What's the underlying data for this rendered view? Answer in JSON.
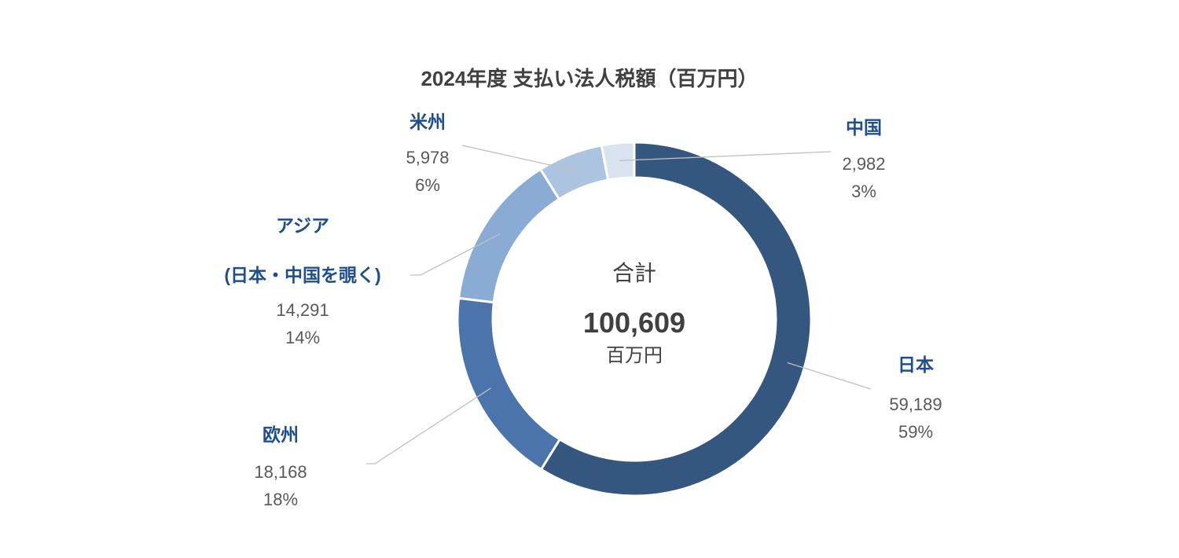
{
  "chart_data": {
    "type": "pie",
    "variant": "donut",
    "title": "2024年度 支払い法人税額（百万円）",
    "center": {
      "caption": "合計",
      "total": "100,609",
      "unit": "百万円"
    },
    "slices": [
      {
        "name": "日本",
        "value": 59189,
        "value_label": "59,189",
        "percent_label": "59%",
        "color": "#35577f"
      },
      {
        "name": "欧州",
        "value": 18168,
        "value_label": "18,168",
        "percent_label": "18%",
        "color": "#4a74ab"
      },
      {
        "name": "アジア",
        "name_line2": "(日本・中国を覗く)",
        "value": 14291,
        "value_label": "14,291",
        "percent_label": "14%",
        "color": "#8aabd4"
      },
      {
        "name": "米州",
        "value": 5978,
        "value_label": "5,978",
        "percent_label": "6%",
        "color": "#adc4e1"
      },
      {
        "name": "中国",
        "value": 2982,
        "value_label": "2,982",
        "percent_label": "3%",
        "color": "#d9e3f0"
      }
    ]
  }
}
